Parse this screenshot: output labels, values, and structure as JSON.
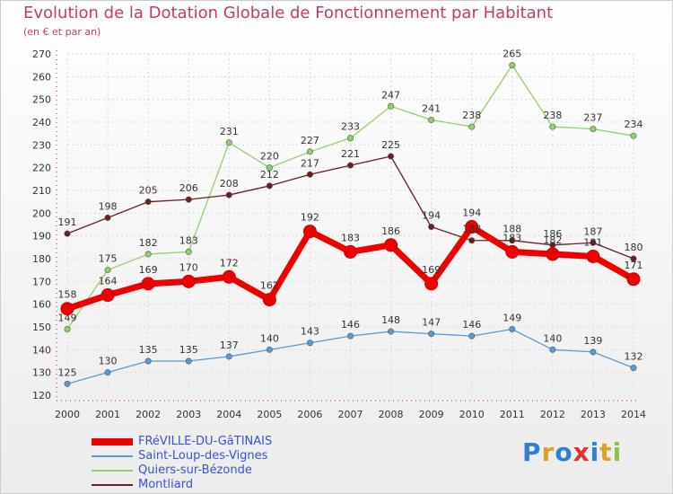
{
  "title": "Evolution de la Dotation Globale de Fonctionnement par Habitant",
  "subtitle": "(en € et par an)",
  "brand": {
    "letters": [
      "P",
      "r",
      "o",
      "x",
      "i",
      "t",
      "i"
    ],
    "colors": [
      "#2f7fd6",
      "#e0a020",
      "#2f7fd6",
      "#e03030",
      "#2f7fd6",
      "#e0a020",
      "#8bc34a"
    ]
  },
  "chart_data": {
    "type": "line",
    "x": [
      "2000",
      "2001",
      "2002",
      "2003",
      "2004",
      "2005",
      "2006",
      "2007",
      "2008",
      "2009",
      "2010",
      "2011",
      "2012",
      "2013",
      "2014"
    ],
    "ylim": [
      120,
      270
    ],
    "yticks": [
      120,
      130,
      140,
      150,
      160,
      170,
      180,
      190,
      200,
      210,
      220,
      230,
      240,
      250,
      260,
      270
    ],
    "grid": true,
    "legend_position": "bottom-left",
    "series": [
      {
        "name": "FRéVILLE-DU-GâTINAIS",
        "color": "#ee0000",
        "values": [
          158,
          164,
          169,
          170,
          172,
          162,
          192,
          183,
          186,
          169,
          194,
          183,
          182,
          181,
          171
        ]
      },
      {
        "name": "Saint-Loup-des-Vignes",
        "color": "#5b9bd5",
        "values": [
          125,
          130,
          135,
          135,
          137,
          140,
          143,
          146,
          148,
          147,
          146,
          149,
          140,
          139,
          132
        ]
      },
      {
        "name": "Quiers-sur-Bézonde",
        "color": "#8fd16a",
        "values": [
          149,
          175,
          182,
          183,
          231,
          220,
          227,
          233,
          247,
          241,
          238,
          265,
          238,
          237,
          234
        ]
      },
      {
        "name": "Montliard",
        "color": "#6b1f1f",
        "values": [
          191,
          198,
          205,
          206,
          208,
          212,
          217,
          221,
          225,
          194,
          188,
          188,
          186,
          187,
          180
        ]
      }
    ]
  }
}
